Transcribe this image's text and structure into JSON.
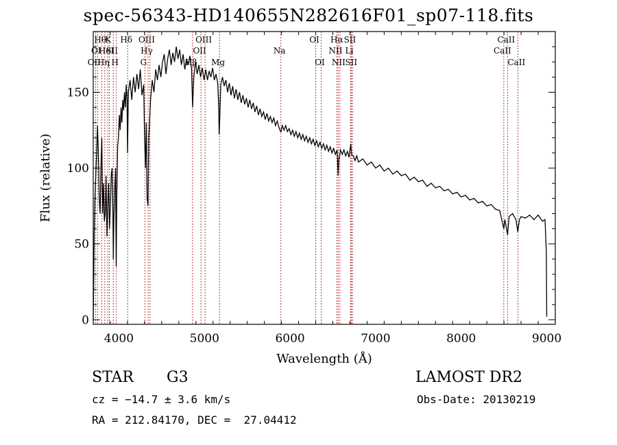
{
  "header": {
    "title": "spec-56343-HD140655N282616F01_sp07-118.fits"
  },
  "info": {
    "object_type": "STAR",
    "spectral_class": "G3",
    "survey": "LAMOST DR2",
    "cz": "cz = −14.7 ± 3.6 km/s",
    "obs_date": "Obs-Date: 20130219",
    "radec": "RA = 212.84170, DEC =  27.04412"
  },
  "chart_data": {
    "type": "line",
    "title": "spec-56343-HD140655N282616F01_sp07-118.fits",
    "xlabel": "Wavelength (Å)",
    "ylabel": "Flux (relative)",
    "xlim": [
      3700,
      9100
    ],
    "ylim": [
      -3,
      190
    ],
    "xticks": [
      4000,
      5000,
      6000,
      7000,
      8000,
      9000
    ],
    "yticks": [
      0,
      50,
      100,
      150
    ],
    "grid": false,
    "line_color": "#000000",
    "marker_line_color": "#b22222",
    "spectrum": [
      [
        3700,
        0
      ],
      [
        3705,
        20
      ],
      [
        3712,
        60
      ],
      [
        3720,
        80
      ],
      [
        3730,
        95
      ],
      [
        3740,
        110
      ],
      [
        3750,
        128
      ],
      [
        3760,
        110
      ],
      [
        3770,
        80
      ],
      [
        3780,
        70
      ],
      [
        3790,
        100
      ],
      [
        3800,
        120
      ],
      [
        3810,
        70
      ],
      [
        3820,
        90
      ],
      [
        3830,
        65
      ],
      [
        3840,
        70
      ],
      [
        3850,
        95
      ],
      [
        3860,
        55
      ],
      [
        3870,
        75
      ],
      [
        3880,
        90
      ],
      [
        3890,
        60
      ],
      [
        3900,
        75
      ],
      [
        3910,
        95
      ],
      [
        3920,
        100
      ],
      [
        3930,
        70
      ],
      [
        3935,
        40
      ],
      [
        3940,
        65
      ],
      [
        3950,
        85
      ],
      [
        3960,
        100
      ],
      [
        3968,
        35
      ],
      [
        3975,
        80
      ],
      [
        3985,
        115
      ],
      [
        3995,
        120
      ],
      [
        4005,
        135
      ],
      [
        4015,
        125
      ],
      [
        4025,
        140
      ],
      [
        4035,
        130
      ],
      [
        4045,
        145
      ],
      [
        4055,
        138
      ],
      [
        4065,
        150
      ],
      [
        4075,
        140
      ],
      [
        4085,
        155
      ],
      [
        4095,
        145
      ],
      [
        4101,
        110
      ],
      [
        4110,
        150
      ],
      [
        4130,
        158
      ],
      [
        4150,
        145
      ],
      [
        4170,
        160
      ],
      [
        4190,
        150
      ],
      [
        4210,
        162
      ],
      [
        4230,
        152
      ],
      [
        4250,
        165
      ],
      [
        4270,
        148
      ],
      [
        4290,
        155
      ],
      [
        4300,
        120
      ],
      [
        4310,
        100
      ],
      [
        4320,
        130
      ],
      [
        4330,
        80
      ],
      [
        4340,
        75
      ],
      [
        4350,
        120
      ],
      [
        4370,
        145
      ],
      [
        4390,
        158
      ],
      [
        4410,
        150
      ],
      [
        4430,
        165
      ],
      [
        4450,
        158
      ],
      [
        4470,
        168
      ],
      [
        4490,
        160
      ],
      [
        4510,
        170
      ],
      [
        4530,
        175
      ],
      [
        4550,
        162
      ],
      [
        4570,
        172
      ],
      [
        4590,
        178
      ],
      [
        4610,
        168
      ],
      [
        4630,
        176
      ],
      [
        4650,
        170
      ],
      [
        4670,
        180
      ],
      [
        4690,
        172
      ],
      [
        4710,
        178
      ],
      [
        4730,
        168
      ],
      [
        4750,
        175
      ],
      [
        4770,
        165
      ],
      [
        4790,
        172
      ],
      [
        4810,
        168
      ],
      [
        4830,
        174
      ],
      [
        4850,
        165
      ],
      [
        4861,
        140
      ],
      [
        4875,
        160
      ],
      [
        4895,
        170
      ],
      [
        4915,
        162
      ],
      [
        4935,
        168
      ],
      [
        4955,
        160
      ],
      [
        4975,
        166
      ],
      [
        4995,
        158
      ],
      [
        5015,
        165
      ],
      [
        5035,
        158
      ],
      [
        5055,
        164
      ],
      [
        5075,
        160
      ],
      [
        5095,
        166
      ],
      [
        5115,
        158
      ],
      [
        5135,
        162
      ],
      [
        5155,
        156
      ],
      [
        5167,
        140
      ],
      [
        5172,
        122
      ],
      [
        5178,
        132
      ],
      [
        5190,
        155
      ],
      [
        5210,
        160
      ],
      [
        5230,
        154
      ],
      [
        5250,
        158
      ],
      [
        5270,
        150
      ],
      [
        5290,
        156
      ],
      [
        5310,
        148
      ],
      [
        5330,
        154
      ],
      [
        5350,
        146
      ],
      [
        5370,
        152
      ],
      [
        5390,
        145
      ],
      [
        5410,
        150
      ],
      [
        5430,
        143
      ],
      [
        5450,
        148
      ],
      [
        5470,
        142
      ],
      [
        5490,
        146
      ],
      [
        5510,
        140
      ],
      [
        5530,
        145
      ],
      [
        5550,
        139
      ],
      [
        5570,
        143
      ],
      [
        5590,
        137
      ],
      [
        5610,
        141
      ],
      [
        5630,
        135
      ],
      [
        5650,
        139
      ],
      [
        5670,
        134
      ],
      [
        5690,
        137
      ],
      [
        5710,
        132
      ],
      [
        5730,
        136
      ],
      [
        5750,
        131
      ],
      [
        5770,
        134
      ],
      [
        5790,
        130
      ],
      [
        5810,
        133
      ],
      [
        5830,
        128
      ],
      [
        5850,
        131
      ],
      [
        5870,
        127
      ],
      [
        5889,
        124
      ],
      [
        5896,
        124
      ],
      [
        5910,
        128
      ],
      [
        5930,
        125
      ],
      [
        5950,
        128
      ],
      [
        5970,
        124
      ],
      [
        5990,
        126
      ],
      [
        6010,
        122
      ],
      [
        6030,
        125
      ],
      [
        6050,
        121
      ],
      [
        6070,
        124
      ],
      [
        6090,
        120
      ],
      [
        6110,
        123
      ],
      [
        6130,
        119
      ],
      [
        6150,
        122
      ],
      [
        6170,
        118
      ],
      [
        6190,
        121
      ],
      [
        6210,
        117
      ],
      [
        6230,
        120
      ],
      [
        6250,
        116
      ],
      [
        6270,
        119
      ],
      [
        6290,
        115
      ],
      [
        6310,
        118
      ],
      [
        6330,
        114
      ],
      [
        6350,
        117
      ],
      [
        6370,
        113
      ],
      [
        6390,
        116
      ],
      [
        6410,
        112
      ],
      [
        6430,
        115
      ],
      [
        6450,
        111
      ],
      [
        6470,
        114
      ],
      [
        6490,
        110
      ],
      [
        6510,
        113
      ],
      [
        6530,
        109
      ],
      [
        6550,
        112
      ],
      [
        6563,
        95
      ],
      [
        6570,
        105
      ],
      [
        6590,
        112
      ],
      [
        6610,
        109
      ],
      [
        6630,
        112
      ],
      [
        6650,
        108
      ],
      [
        6670,
        111
      ],
      [
        6690,
        107
      ],
      [
        6710,
        116
      ],
      [
        6720,
        109
      ],
      [
        6740,
        108
      ],
      [
        6760,
        105
      ],
      [
        6780,
        108
      ],
      [
        6800,
        104
      ],
      [
        6850,
        106
      ],
      [
        6900,
        102
      ],
      [
        6950,
        104
      ],
      [
        7000,
        100
      ],
      [
        7050,
        102
      ],
      [
        7100,
        98
      ],
      [
        7150,
        100
      ],
      [
        7200,
        96
      ],
      [
        7250,
        98
      ],
      [
        7300,
        95
      ],
      [
        7350,
        96
      ],
      [
        7400,
        92
      ],
      [
        7450,
        94
      ],
      [
        7500,
        91
      ],
      [
        7550,
        92
      ],
      [
        7600,
        88
      ],
      [
        7650,
        90
      ],
      [
        7700,
        87
      ],
      [
        7750,
        88
      ],
      [
        7800,
        85
      ],
      [
        7850,
        86
      ],
      [
        7900,
        83
      ],
      [
        7950,
        84
      ],
      [
        8000,
        81
      ],
      [
        8050,
        82
      ],
      [
        8100,
        79
      ],
      [
        8150,
        80
      ],
      [
        8200,
        77
      ],
      [
        8250,
        78
      ],
      [
        8300,
        75
      ],
      [
        8350,
        76
      ],
      [
        8400,
        73
      ],
      [
        8450,
        72
      ],
      [
        8498,
        60
      ],
      [
        8510,
        66
      ],
      [
        8542,
        56
      ],
      [
        8560,
        68
      ],
      [
        8600,
        70
      ],
      [
        8640,
        66
      ],
      [
        8662,
        58
      ],
      [
        8680,
        66
      ],
      [
        8700,
        68
      ],
      [
        8750,
        67
      ],
      [
        8800,
        69
      ],
      [
        8850,
        66
      ],
      [
        8900,
        69
      ],
      [
        8950,
        65
      ],
      [
        8980,
        66
      ],
      [
        8995,
        45
      ],
      [
        9000,
        2
      ]
    ],
    "lines": [
      {
        "w": 3727,
        "labels": [
          {
            "text": "OII",
            "row": 2
          }
        ]
      },
      {
        "w": 3750,
        "labels": [
          {
            "text": "OI",
            "row": 1
          }
        ]
      },
      {
        "w": 3798,
        "labels": [
          {
            "text": "Hθ",
            "row": 0
          }
        ]
      },
      {
        "w": 3835,
        "labels": [
          {
            "text": "Hη",
            "row": 2
          }
        ]
      },
      {
        "w": 3869,
        "labels": [
          {
            "text": "HeI",
            "row": 1
          }
        ]
      },
      {
        "w": 3889,
        "labels": [
          {
            "text": "K",
            "row": 0
          }
        ]
      },
      {
        "w": 3934,
        "labels": [
          {
            "text": "SII",
            "row": 1
          }
        ]
      },
      {
        "w": 3970,
        "labels": [
          {
            "text": "H",
            "row": 2
          }
        ]
      },
      {
        "w": 4102,
        "labels": [
          {
            "text": "Hδ",
            "row": 0
          }
        ]
      },
      {
        "w": 4304,
        "labels": [
          {
            "text": "G",
            "row": 2
          }
        ]
      },
      {
        "w": 4341,
        "labels": [
          {
            "text": "OIII",
            "row": 0
          },
          {
            "text": "Hγ",
            "row": 1
          }
        ]
      },
      {
        "w": 4363,
        "labels": []
      },
      {
        "w": 4861,
        "labels": [
          {
            "text": "Hβ",
            "row": 2
          }
        ]
      },
      {
        "w": 4959,
        "labels": [
          {
            "text": "OII",
            "row": 1
          }
        ]
      },
      {
        "w": 5007,
        "labels": [
          {
            "text": "OIII",
            "row": 0
          }
        ]
      },
      {
        "w": 5175,
        "labels": [
          {
            "text": "Mg",
            "row": 2
          }
        ]
      },
      {
        "w": 5893,
        "labels": [
          {
            "text": "Na",
            "row": 1
          }
        ]
      },
      {
        "w": 6300,
        "labels": [
          {
            "text": "OI",
            "row": 0
          }
        ]
      },
      {
        "w": 6364,
        "labels": [
          {
            "text": "OI",
            "row": 2
          }
        ]
      },
      {
        "w": 6548,
        "labels": [
          {
            "text": "NII",
            "row": 1
          }
        ]
      },
      {
        "w": 6563,
        "labels": [
          {
            "text": "Hα",
            "row": 0
          }
        ]
      },
      {
        "w": 6583,
        "labels": [
          {
            "text": "NII",
            "row": 2
          }
        ]
      },
      {
        "w": 6708,
        "labels": [
          {
            "text": "Li",
            "row": 1
          }
        ]
      },
      {
        "w": 6716,
        "labels": [
          {
            "text": "SII",
            "row": 0
          }
        ]
      },
      {
        "w": 6731,
        "labels": [
          {
            "text": "SII",
            "row": 2
          }
        ]
      },
      {
        "w": 8498,
        "labels": [
          {
            "text": "CaII",
            "row": 1
          }
        ]
      },
      {
        "w": 8542,
        "labels": [
          {
            "text": "CaII",
            "row": 0
          }
        ]
      },
      {
        "w": 8662,
        "labels": [
          {
            "text": "CaII",
            "row": 2
          }
        ]
      }
    ]
  }
}
